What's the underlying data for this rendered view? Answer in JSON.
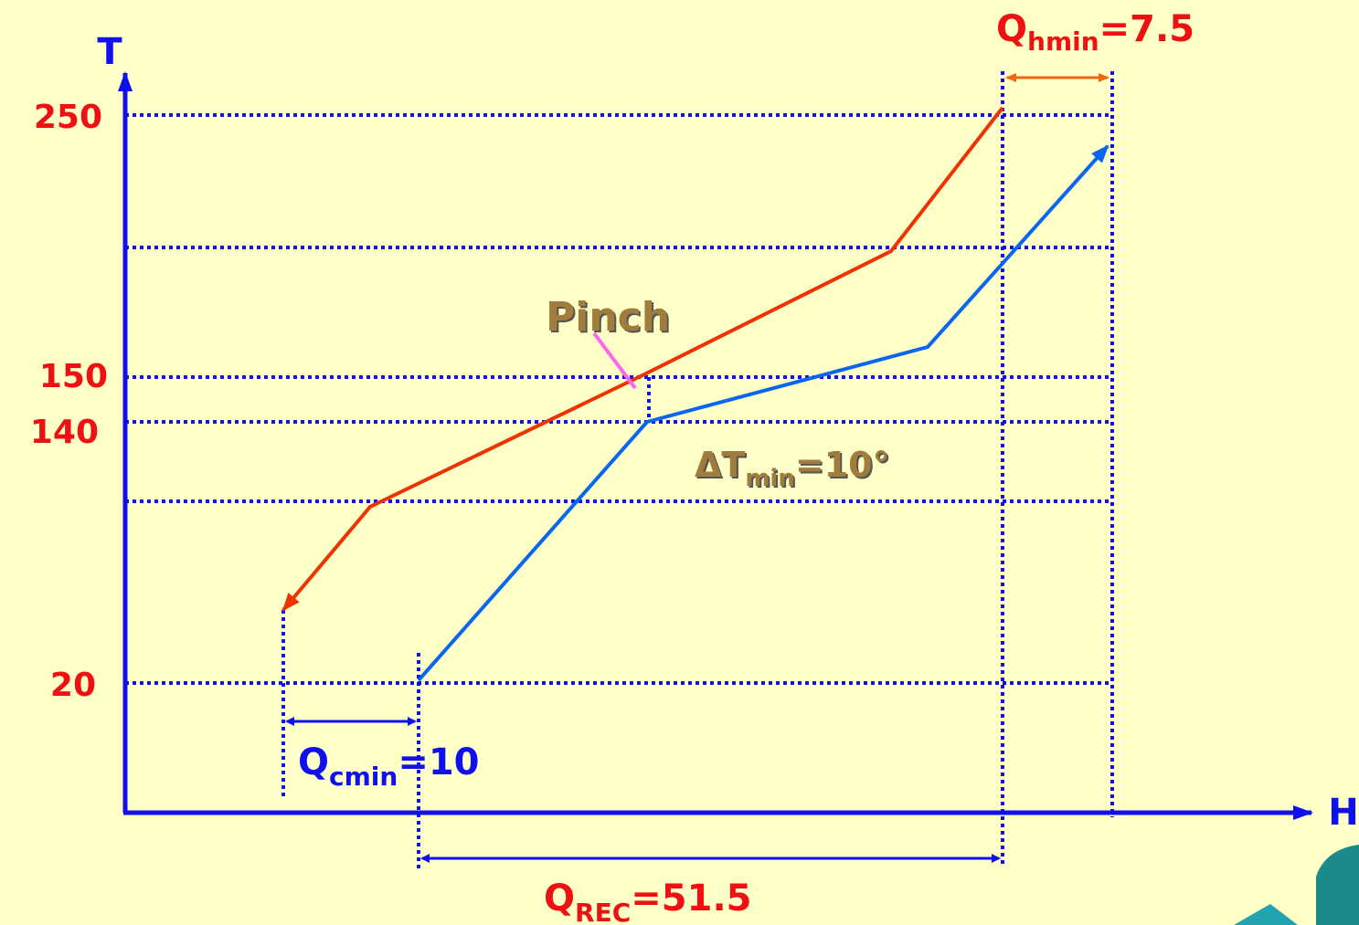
{
  "axes": {
    "y_label": "T",
    "x_label": "H",
    "t_labels": [
      "250",
      "150",
      "140",
      "20"
    ]
  },
  "annotations": {
    "pinch": "Pinch",
    "dtmin": {
      "main": "ΔT",
      "sub": "min",
      "rest": "=10°"
    },
    "qhmin": {
      "main": "Q",
      "sub": "hmin",
      "rest": "=7.5"
    },
    "qcmin": {
      "main": "Q",
      "sub": "cmin",
      "rest": "=10"
    },
    "qrec": {
      "main": "Q",
      "sub": "REC",
      "rest": "=51.5"
    }
  }
}
